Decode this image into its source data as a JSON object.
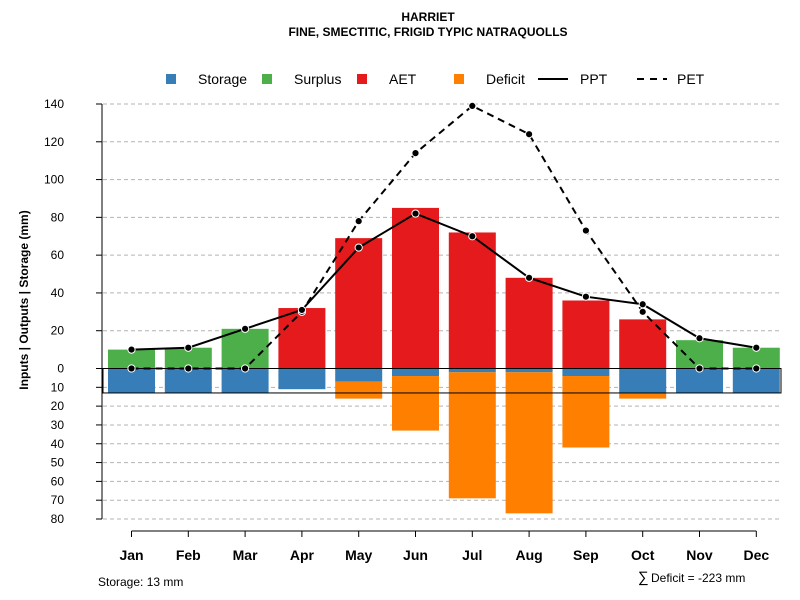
{
  "chart_data": {
    "type": "bar",
    "title": "HARRIET",
    "subtitle": "FINE, SMECTITIC, FRIGID TYPIC NATRAQUOLLS",
    "ylabel": "Inputs | Outputs | Storage    (mm)",
    "ylim": [
      -80,
      140
    ],
    "y_ticks_up": [
      0,
      20,
      40,
      60,
      80,
      100,
      120,
      140
    ],
    "y_ticks_down": [
      10,
      20,
      30,
      40,
      50,
      60,
      70,
      80
    ],
    "categories": [
      "Jan",
      "Feb",
      "Mar",
      "Apr",
      "May",
      "Jun",
      "Jul",
      "Aug",
      "Sep",
      "Oct",
      "Nov",
      "Dec"
    ],
    "legend": [
      {
        "name": "Storage",
        "color": "#377EB8",
        "kind": "square"
      },
      {
        "name": "Surplus",
        "color": "#4DAF4A",
        "kind": "square"
      },
      {
        "name": "AET",
        "color": "#E41A1C",
        "kind": "square"
      },
      {
        "name": "Deficit",
        "color": "#FF7F00",
        "kind": "square"
      },
      {
        "name": "PPT",
        "color": "#000000",
        "kind": "solid"
      },
      {
        "name": "PET",
        "color": "#000000",
        "kind": "dashed"
      }
    ],
    "series": [
      {
        "name": "Surplus",
        "values": [
          10,
          11,
          21,
          0,
          0,
          0,
          0,
          0,
          0,
          0,
          15,
          11
        ]
      },
      {
        "name": "AET",
        "values": [
          0,
          0,
          0,
          32,
          69,
          85,
          72,
          48,
          36,
          26,
          0,
          0
        ]
      },
      {
        "name": "Storage",
        "values": [
          13,
          13,
          13,
          11,
          7,
          4,
          2,
          2,
          4,
          13,
          13,
          13
        ]
      },
      {
        "name": "Deficit",
        "values": [
          0,
          0,
          0,
          0,
          9,
          29,
          67,
          75,
          38,
          3,
          0,
          0
        ]
      },
      {
        "name": "PPT",
        "values": [
          10,
          11,
          21,
          31,
          64,
          82,
          70,
          48,
          38,
          34,
          16,
          11
        ]
      },
      {
        "name": "PET",
        "values": [
          0,
          0,
          0,
          30,
          78,
          114,
          139,
          124,
          73,
          30,
          0,
          0
        ]
      }
    ],
    "storage_capacity": 13
  },
  "footer": {
    "storage_label": "Storage: 13 mm",
    "deficit_symbol": "∑",
    "deficit_label": "Deficit = -223 mm"
  }
}
